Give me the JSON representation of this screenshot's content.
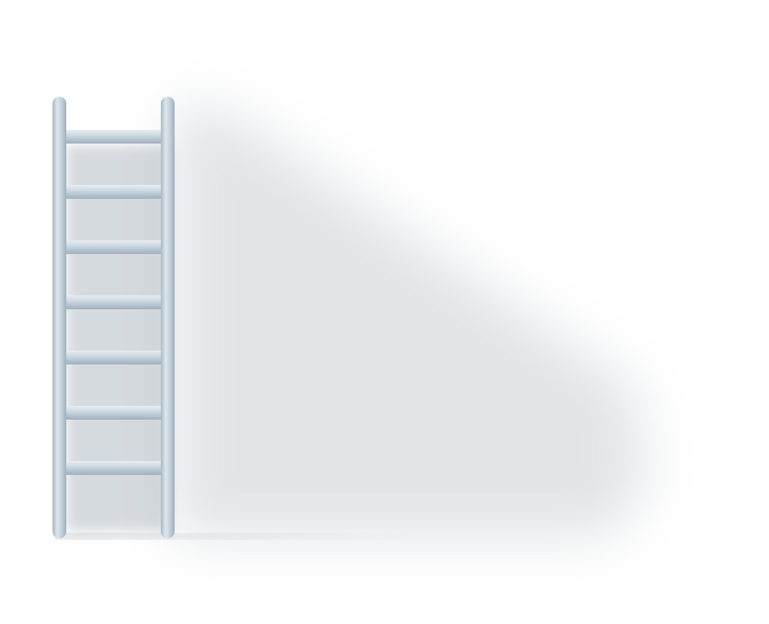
{
  "scene": {
    "subject": "ladder-icon",
    "background_color": "#ffffff",
    "ladder_color": "#c9d5de",
    "ladder_highlight_color": "#e7eef3",
    "ladder_shade_color": "#9fb0bd",
    "shadow_color": "#8a97a3",
    "rung_count": 7
  }
}
